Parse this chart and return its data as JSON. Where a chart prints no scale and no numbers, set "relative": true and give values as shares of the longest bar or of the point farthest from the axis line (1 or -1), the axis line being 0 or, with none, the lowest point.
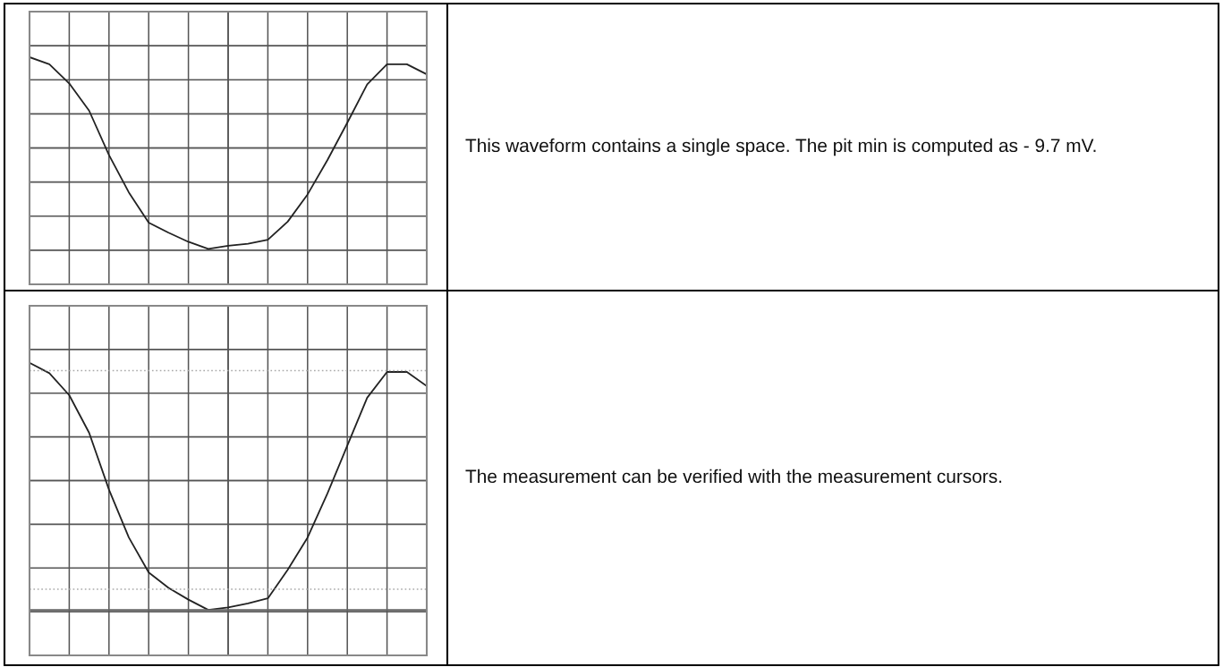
{
  "chart_data": [
    {
      "type": "line",
      "relative": true,
      "grid": true,
      "tick_labels": false,
      "categories": [
        null,
        null,
        null,
        null,
        null,
        null,
        null,
        null,
        null,
        null,
        null,
        null,
        null,
        null,
        null,
        null,
        null,
        null,
        null,
        null,
        null
      ],
      "series": [
        {
          "color": "#222222",
          "values": [
            0.9,
            0.83,
            0.64,
            0.37,
            -0.07,
            -0.44,
            -0.74,
            -0.84,
            -0.93,
            -1,
            -0.97,
            -0.95,
            -0.91,
            -0.73,
            -0.46,
            -0.12,
            0.25,
            0.63,
            0.83,
            0.83,
            0.73
          ]
        }
      ]
    },
    {
      "type": "other",
      "annotations": [
        "This waveform contains a single space. The pit min is computed as - 9.7 mV."
      ]
    },
    {
      "type": "line",
      "relative": true,
      "grid": true,
      "tick_labels": false,
      "categories": [
        null,
        null,
        null,
        null,
        null,
        null,
        null,
        null,
        null,
        null,
        null,
        null,
        null,
        null,
        null,
        null,
        null,
        null,
        null,
        null,
        null
      ],
      "series": [
        {
          "color": "#222222",
          "values": [
            0.91,
            0.83,
            0.66,
            0.37,
            -0.07,
            -0.44,
            -0.71,
            -0.83,
            -0.92,
            -1,
            -0.98,
            -0.95,
            -0.91,
            -0.69,
            -0.44,
            -0.1,
            0.27,
            0.64,
            0.84,
            0.84,
            0.73
          ]
        }
      ],
      "ref_lines": [
        {
          "axis": "y",
          "value": 0.85,
          "color": "#aaaaaa",
          "line_style": "dotted"
        },
        {
          "axis": "y",
          "value": -0.84,
          "color": "#aaaaaa",
          "line_style": "dotted"
        },
        {
          "axis": "y",
          "value": -1,
          "color": "#666666",
          "line_style": "solid"
        }
      ]
    },
    {
      "type": "other",
      "annotations": [
        "The measurement can be verified with the measurement cursors."
      ]
    }
  ]
}
